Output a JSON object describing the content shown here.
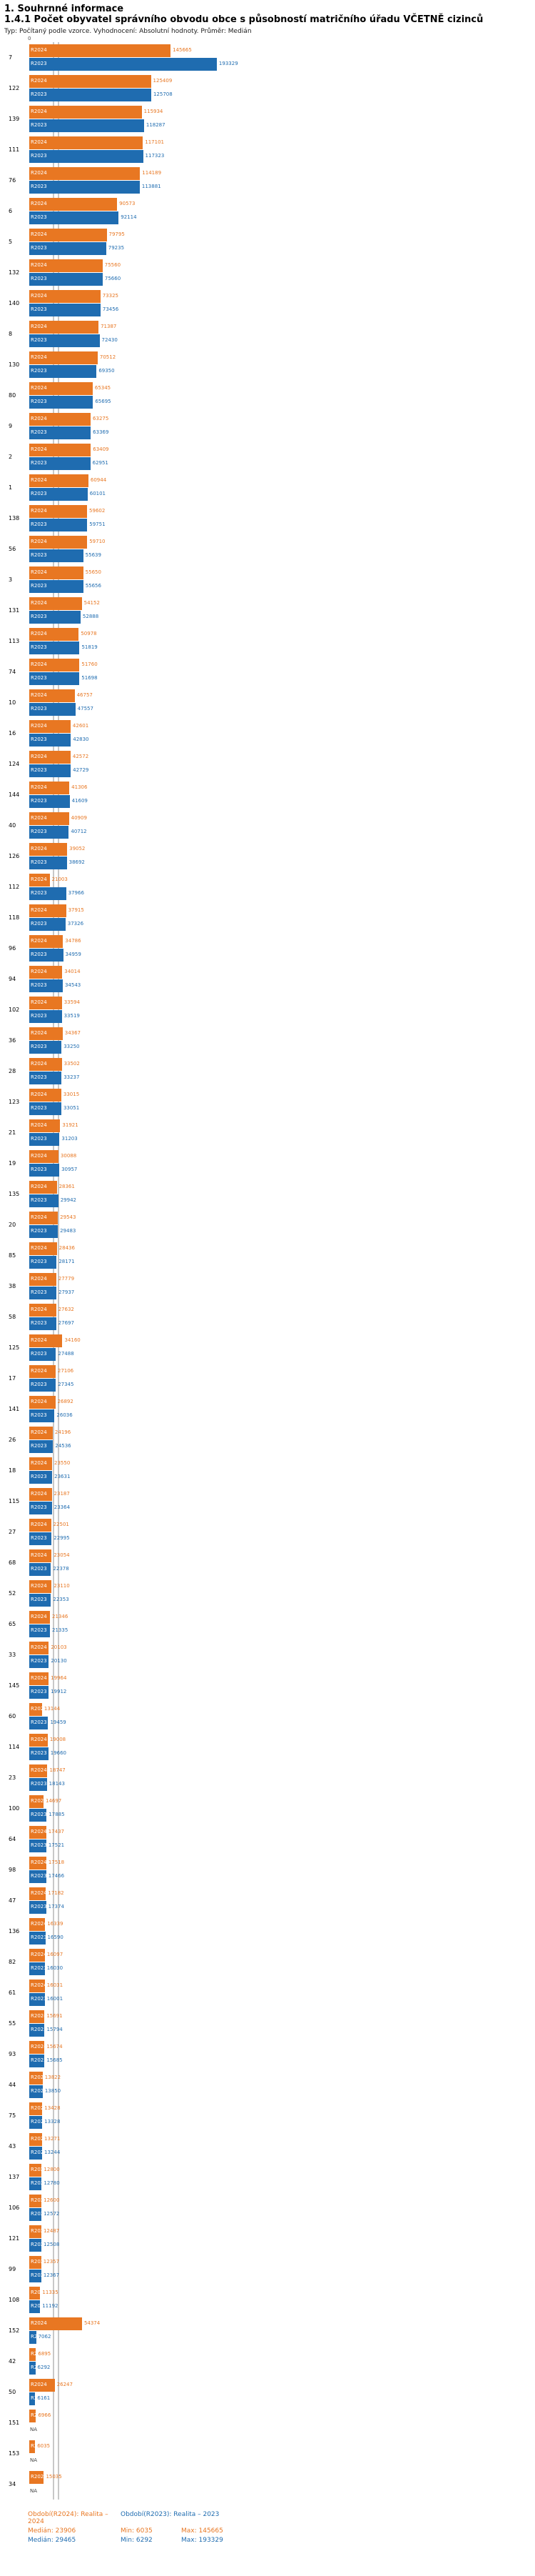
{
  "header": {
    "title": "1. Souhrnné informace",
    "subtitle": "1.4.1 Počet obyvatel správního obvodu obce s působností matričního úřadu VČETNĚ cizinců",
    "meta": "Typ: Počítaný podle vzorce. Vyhodnocení: Absolutní hodnoty. Průměr: Medián"
  },
  "axis": {
    "origin_label": "0"
  },
  "colors": {
    "r2024": "#E87722",
    "r2023": "#1F6CB0",
    "median_line": "#C8C8C8"
  },
  "legend": {
    "r2024": {
      "period": "Období(R2024): Realita – 2024",
      "median": "Medián: 23906",
      "min": "Min: 6035",
      "max": "Max: 145665"
    },
    "r2023": {
      "period": "Období(R2023): Realita – 2023",
      "median": "Medián: 29465",
      "min": "Min: 6292",
      "max": "Max: 193329"
    }
  },
  "chart_data": {
    "type": "bar",
    "orientation": "horizontal",
    "title": "1.4.1 Počet obyvatel správního obvodu obce s působností matričního úřadu VČETNĚ cizinců",
    "xlabel": "Počet obyvatel",
    "ylabel": "Matriční úřad (ID)",
    "xlim": [
      0,
      200000
    ],
    "grid": false,
    "legend_position": "bottom",
    "na_label": "NA",
    "medians": {
      "r2024": 23906,
      "r2023": 29465
    },
    "categories": [
      "7",
      "122",
      "139",
      "111",
      "76",
      "6",
      "5",
      "132",
      "140",
      "8",
      "130",
      "80",
      "9",
      "2",
      "1",
      "138",
      "56",
      "3",
      "131",
      "113",
      "74",
      "10",
      "16",
      "124",
      "144",
      "40",
      "126",
      "112",
      "118",
      "96",
      "94",
      "102",
      "36",
      "28",
      "123",
      "21",
      "19",
      "135",
      "20",
      "85",
      "38",
      "58",
      "125",
      "17",
      "141",
      "26",
      "18",
      "115",
      "27",
      "68",
      "52",
      "65",
      "33",
      "145",
      "60",
      "114",
      "23",
      "100",
      "64",
      "98",
      "47",
      "136",
      "82",
      "61",
      "55",
      "93",
      "44",
      "75",
      "43",
      "137",
      "106",
      "121",
      "99",
      "108",
      "152",
      "42",
      "50",
      "151",
      "153",
      "34"
    ],
    "series": [
      {
        "name": "R2024",
        "color_key": "r2024",
        "values": [
          145665,
          125409,
          115934,
          117101,
          114189,
          90573,
          79795,
          75560,
          73325,
          71387,
          70512,
          65345,
          63275,
          63409,
          60944,
          59602,
          59710,
          55650,
          54152,
          50978,
          51760,
          46757,
          42601,
          42572,
          41306,
          40909,
          39052,
          21003,
          37915,
          34786,
          34014,
          33594,
          34367,
          33502,
          33015,
          31921,
          30088,
          28361,
          29543,
          28436,
          27779,
          27632,
          34160,
          27106,
          26892,
          24196,
          23550,
          23187,
          22501,
          23054,
          23110,
          21346,
          20103,
          19964,
          13144,
          19008,
          18747,
          14697,
          17437,
          17518,
          17182,
          16339,
          16097,
          16031,
          15691,
          15674,
          13822,
          13428,
          13271,
          12800,
          12600,
          12487,
          12357,
          11335,
          54374,
          6895,
          26247,
          6966,
          6035,
          15035
        ]
      },
      {
        "name": "R2023",
        "color_key": "r2023",
        "values": [
          193329,
          125708,
          118287,
          117323,
          113881,
          92114,
          79235,
          75660,
          73456,
          72430,
          69350,
          65695,
          63369,
          62951,
          60101,
          59751,
          55639,
          55656,
          52888,
          51819,
          51698,
          47557,
          42830,
          42729,
          41609,
          40712,
          38692,
          37966,
          37326,
          34959,
          34543,
          33519,
          33250,
          33237,
          33051,
          31203,
          30957,
          29942,
          29483,
          28171,
          27937,
          27697,
          27488,
          27345,
          26036,
          24536,
          23631,
          23364,
          22995,
          22378,
          22353,
          21335,
          20130,
          19912,
          19459,
          19660,
          18143,
          17885,
          17521,
          17466,
          17374,
          16590,
          16030,
          16001,
          15794,
          15685,
          13850,
          13328,
          13244,
          12780,
          12572,
          12508,
          12367,
          11192,
          7062,
          6292,
          6161,
          null,
          null,
          null
        ]
      }
    ]
  }
}
